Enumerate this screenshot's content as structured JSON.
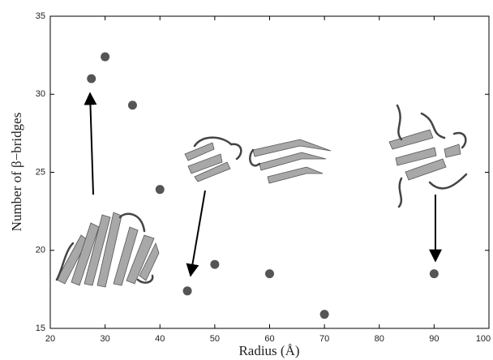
{
  "chart_data": {
    "type": "scatter",
    "x_label": "Radius (Å)",
    "y_label": "Number of β−bridges",
    "x": [
      27.5,
      30,
      35,
      40,
      45,
      50,
      60,
      70,
      90
    ],
    "values": [
      31,
      32.4,
      29.3,
      23.9,
      17.4,
      19.1,
      18.5,
      15.9,
      18.5
    ],
    "color": "#555555",
    "xlim": [
      20,
      100
    ],
    "xticks": [
      20,
      30,
      40,
      50,
      60,
      70,
      80,
      90,
      100
    ],
    "ylim": [
      15,
      35
    ],
    "yticks": [
      15,
      20,
      25,
      30,
      35
    ],
    "grid": false
  }
}
